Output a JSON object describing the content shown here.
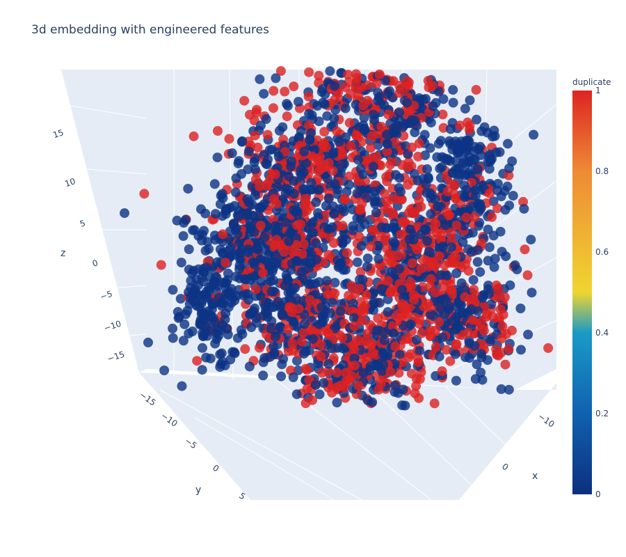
{
  "chart_data": {
    "type": "scatter",
    "subtype": "scatter3d",
    "title": "3d embedding with engineered features",
    "axes": {
      "x": {
        "label": "x",
        "ticks": [
          -10,
          0
        ]
      },
      "y": {
        "label": "y",
        "ticks": [
          -15,
          -10,
          -5,
          0,
          5
        ]
      },
      "z": {
        "label": "z",
        "ticks": [
          -15,
          -10,
          -5,
          0,
          5,
          10,
          15
        ]
      }
    },
    "colorbar": {
      "title": "duplicate",
      "range": [
        0,
        1
      ],
      "ticks": [
        0,
        0.2,
        0.4,
        0.6,
        0.8,
        1
      ],
      "colorscale": [
        "#0d2f7f",
        "#1061b0",
        "#1a9ac7",
        "#f0d530",
        "#ef8a35",
        "#dd2422"
      ]
    },
    "series": [
      {
        "color_value": 0,
        "marker_color": "#0d3384"
      },
      {
        "color_value": 1,
        "marker_color": "#dc2222"
      }
    ],
    "grid": true,
    "legend": "none"
  }
}
